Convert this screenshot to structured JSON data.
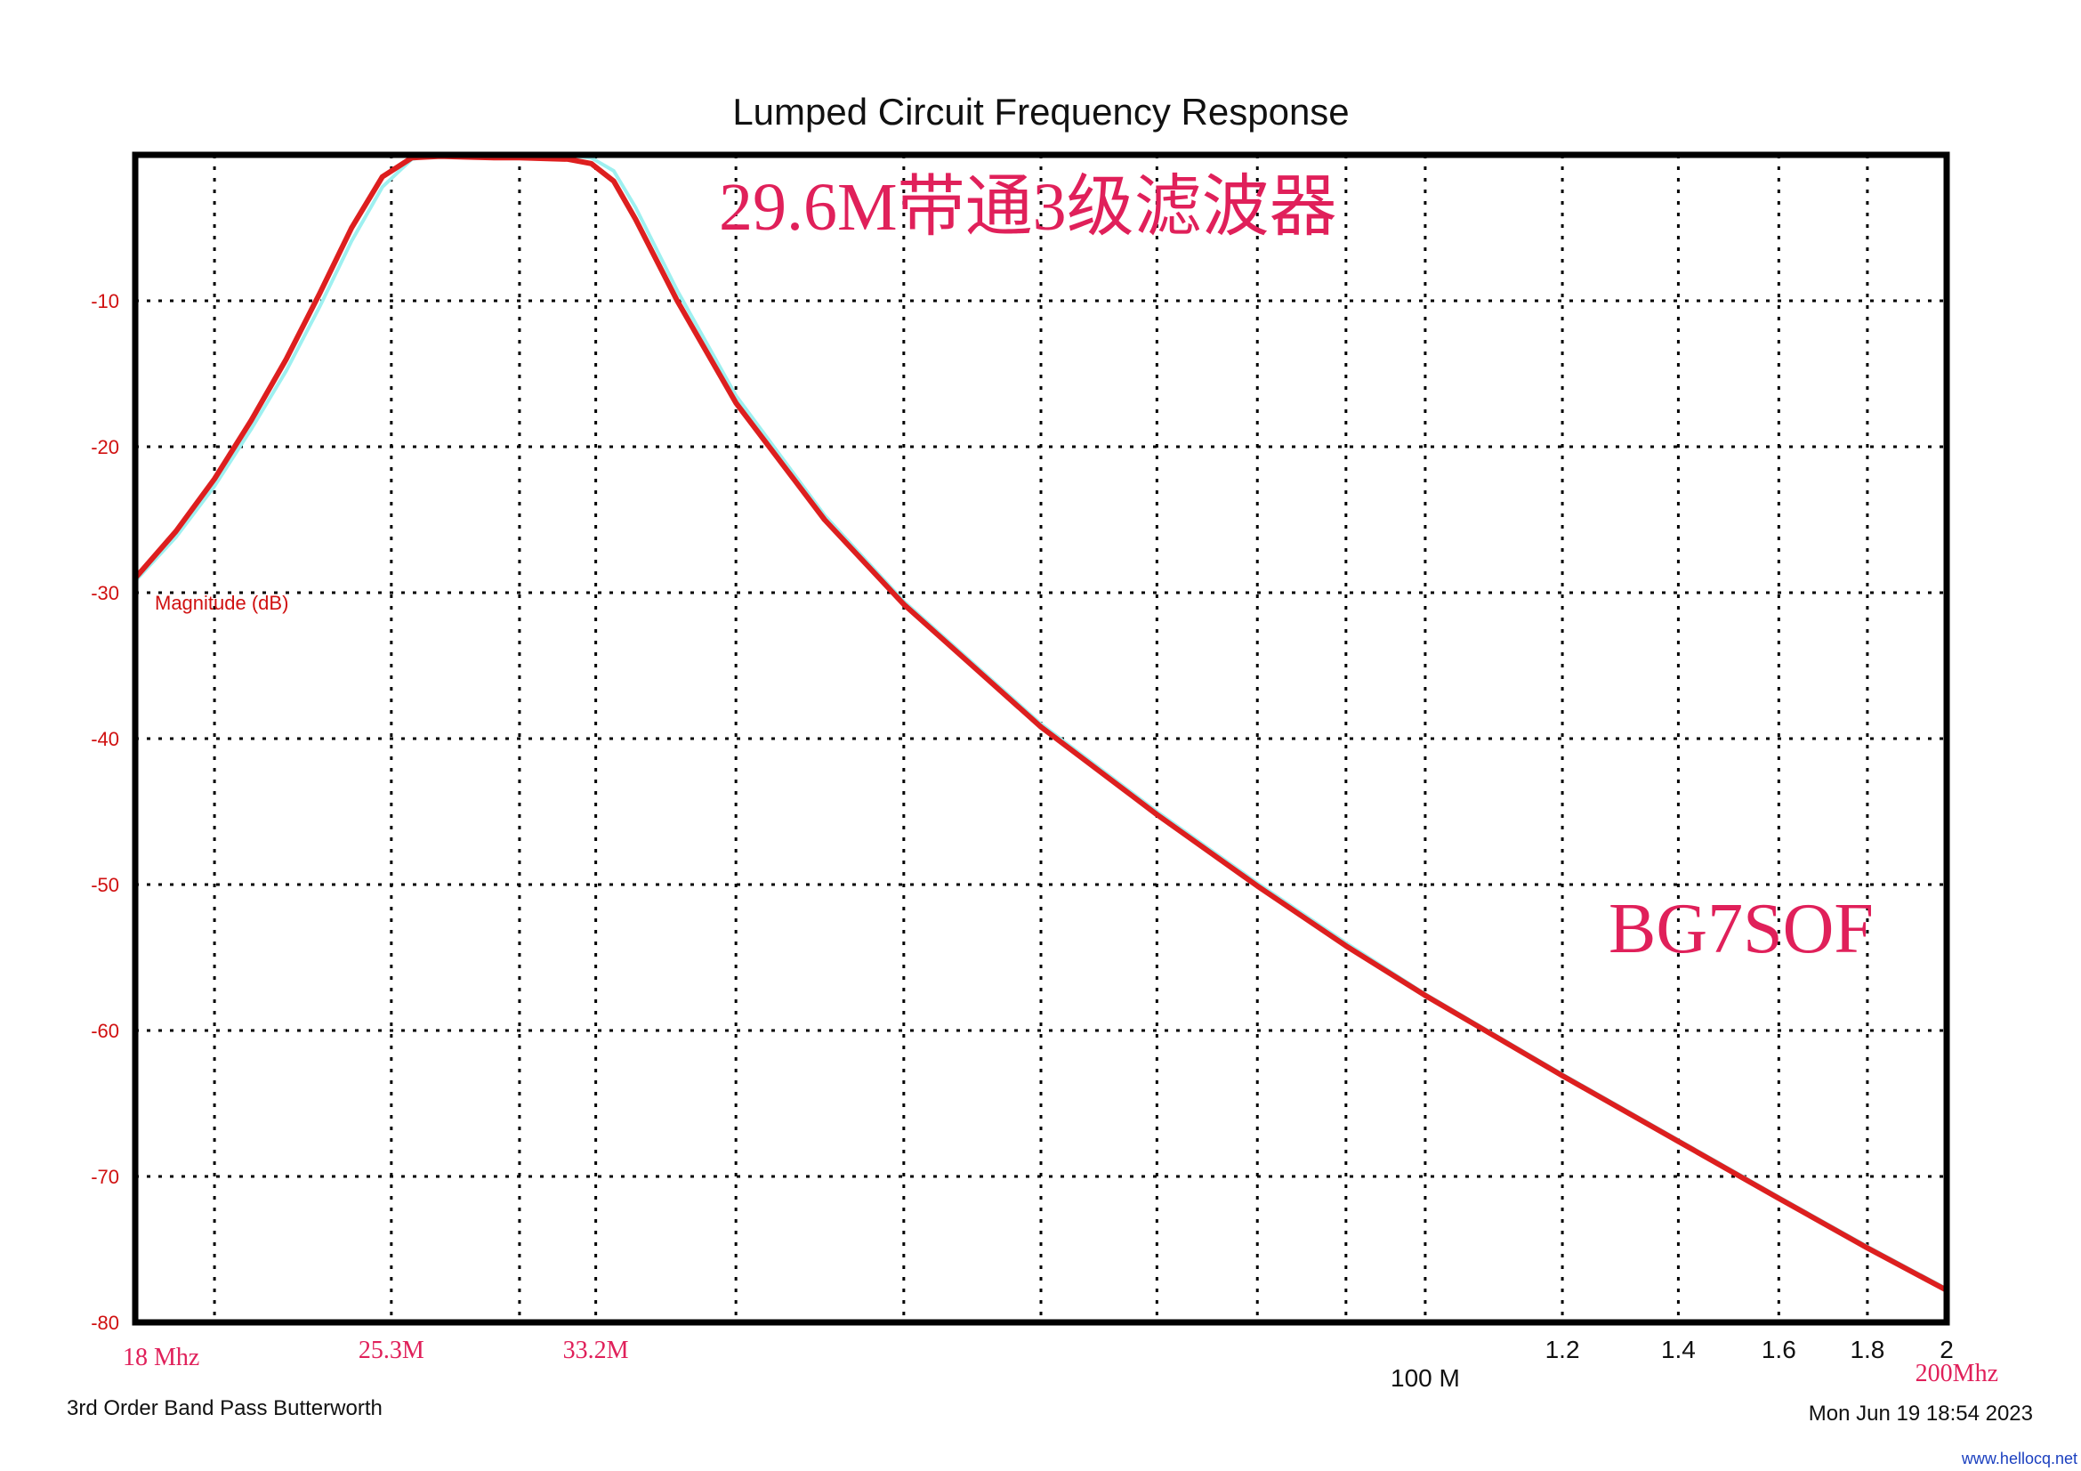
{
  "chart_data": {
    "type": "line",
    "title": "Lumped Circuit Frequency Response",
    "annotation_title": "29.6M带通3级滤波器",
    "watermark_callsign": "BG7SOF",
    "series_label": "Magnitude (dB)",
    "footer_left": "3rd Order Band Pass Butterworth",
    "footer_right": "Mon Jun 19 18:54 2023",
    "site": "www.hellocq.net",
    "x_scale": "log",
    "xlim": [
      18,
      200
    ],
    "ylim": [
      -80,
      0
    ],
    "y_ticks": [
      -10,
      -20,
      -30,
      -40,
      -50,
      -60,
      -70,
      -80
    ],
    "x_grid": [
      20,
      25.3,
      30,
      33.2,
      40,
      50,
      60,
      70,
      80,
      90,
      100,
      120,
      140,
      160,
      180,
      200
    ],
    "x_tick_labels": [
      {
        "x": 100,
        "label": "100 M"
      },
      {
        "x": 120,
        "label": "1.2"
      },
      {
        "x": 140,
        "label": "1.4"
      },
      {
        "x": 160,
        "label": "1.6"
      },
      {
        "x": 180,
        "label": "1.8"
      },
      {
        "x": 200,
        "label": "2"
      }
    ],
    "x_annotations": [
      {
        "x": 18,
        "label": "18 Mhz"
      },
      {
        "x": 25.3,
        "label": "25.3M"
      },
      {
        "x": 33.2,
        "label": "33.2M"
      },
      {
        "x": 200,
        "label": "200Mhz"
      }
    ],
    "grid": true,
    "series": [
      {
        "name": "",
        "color": "#dd1f1f",
        "x": [
          18,
          19,
          20,
          21,
          22,
          23,
          24,
          25,
          26,
          27,
          28,
          29,
          30,
          31,
          32,
          33,
          34,
          35,
          37,
          40,
          45,
          50,
          60,
          70,
          80,
          90,
          100,
          120,
          140,
          160,
          180,
          200
        ],
        "y": [
          -29,
          -25.8,
          -22.2,
          -18.2,
          -14,
          -9.5,
          -5,
          -1.5,
          -0.2,
          -0.1,
          -0.15,
          -0.2,
          -0.2,
          -0.25,
          -0.3,
          -0.6,
          -1.8,
          -4.4,
          -10,
          -17,
          -25,
          -30.8,
          -39.2,
          -45.2,
          -50.1,
          -54.2,
          -57.6,
          -63.1,
          -67.6,
          -71.5,
          -74.9,
          -77.8
        ]
      },
      {
        "name": "",
        "color": "#9ef0f0",
        "x": [
          18,
          19,
          20,
          21,
          22,
          23,
          24,
          25,
          26,
          27,
          28,
          29,
          30,
          31,
          32,
          33,
          34,
          35,
          37,
          40,
          45,
          50,
          60,
          70,
          80,
          90,
          100,
          120,
          140,
          160,
          180,
          200
        ],
        "y": [
          -29.2,
          -26.2,
          -22.7,
          -18.8,
          -14.8,
          -10.4,
          -5.9,
          -2.2,
          -0.3,
          0,
          0,
          0,
          0,
          0,
          -0.05,
          -0.2,
          -1.1,
          -3.6,
          -9.3,
          -16.5,
          -24.7,
          -30.6,
          -39.0,
          -45.0,
          -49.9,
          -54.0,
          -57.5,
          -63.0,
          -67.5,
          -71.4,
          -74.8,
          -77.7
        ]
      }
    ]
  }
}
